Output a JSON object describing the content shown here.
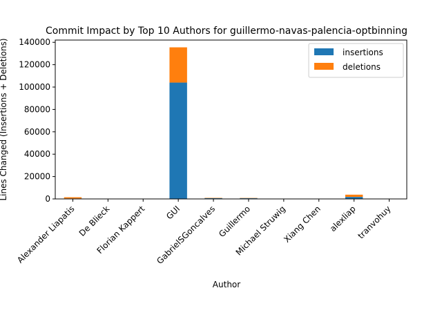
{
  "chart_data": {
    "type": "bar",
    "stacked": true,
    "title": "Commit Impact by Top 10 Authors for guillermo-navas-palencia-optbinning",
    "xlabel": "Author",
    "ylabel": "Lines Changed (Insertions + Deletions)",
    "categories": [
      "Alexander Liapatis",
      "De Blieck",
      "Florian Kappert",
      "GUI",
      "GabrielSGoncalves",
      "Guillermo",
      "Michael Struwig",
      "Xiang Chen",
      "alexliap",
      "tranvohuy"
    ],
    "series": [
      {
        "name": "insertions",
        "color": "#1f77b4",
        "values": [
          400,
          50,
          30,
          104000,
          700,
          600,
          40,
          30,
          1800,
          60
        ]
      },
      {
        "name": "deletions",
        "color": "#ff7f0e",
        "values": [
          1100,
          30,
          20,
          31500,
          300,
          250,
          20,
          15,
          2000,
          40
        ]
      }
    ],
    "ylim": [
      0,
      142000
    ],
    "yticks": [
      0,
      20000,
      40000,
      60000,
      80000,
      100000,
      120000,
      140000
    ],
    "legend_position": "top-right",
    "grid": false
  }
}
